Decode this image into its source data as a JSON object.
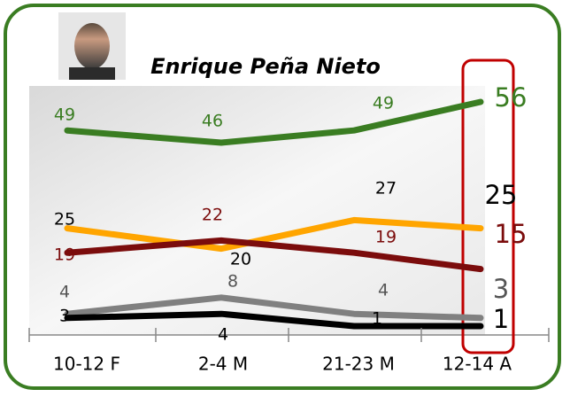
{
  "chart_data": {
    "type": "line",
    "title": "Enrique Peña Nieto",
    "categories": [
      "10-12 F",
      "2-4 M",
      "21-23 M",
      "12-14 A"
    ],
    "series": [
      {
        "color": "#3a7d22",
        "label_color": "#3a7d22",
        "values": [
          49,
          46,
          49,
          56
        ]
      },
      {
        "color": "#ffa500",
        "label_color": "#000000",
        "values": [
          25,
          20,
          27,
          25
        ]
      },
      {
        "color": "#7b0c0c",
        "label_color": "#7b0c0c",
        "values": [
          19,
          22,
          19,
          15
        ]
      },
      {
        "color": "#808080",
        "label_color": "#555555",
        "values": [
          4,
          8,
          4,
          3
        ]
      },
      {
        "color": "#000000",
        "label_color": "#000000",
        "values": [
          3,
          4,
          1,
          1
        ]
      }
    ]
  }
}
